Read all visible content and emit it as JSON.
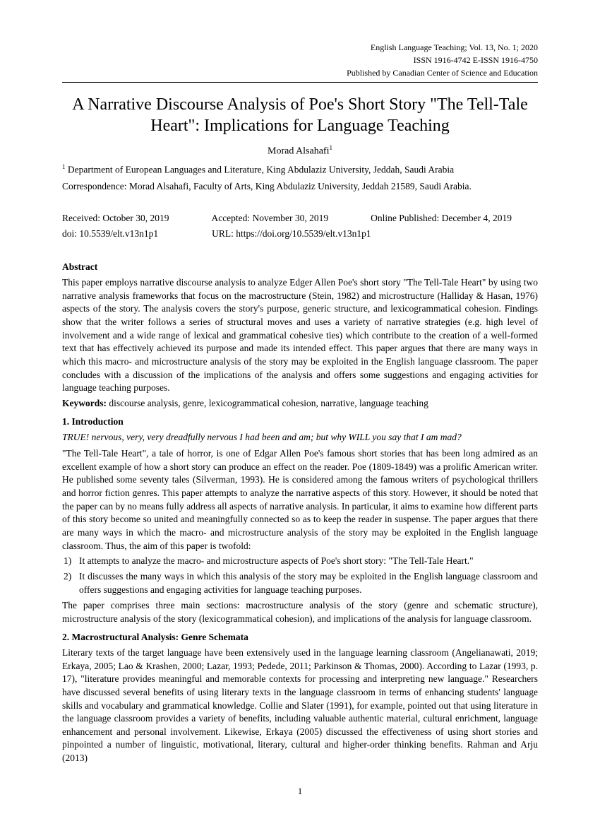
{
  "header": {
    "journal": "English Language Teaching; Vol. 13, No. 1; 2020",
    "issn": "ISSN 1916-4742    E-ISSN 1916-4750",
    "publisher": "Published by Canadian Center of Science and Education"
  },
  "title": "A Narrative Discourse Analysis of Poe's Short Story \"The Tell-Tale Heart\": Implications for Language Teaching",
  "author": "Morad Alsahafi",
  "author_sup": "1",
  "affil_sup": "1",
  "affiliation": " Department of European Languages and Literature, King Abdulaziz University, Jeddah, Saudi Arabia",
  "correspondence": "Correspondence: Morad Alsahafi, Faculty of Arts, King Abdulaziz University, Jeddah 21589, Saudi Arabia.",
  "dates": {
    "received": "Received: October 30, 2019",
    "accepted": "Accepted: November 30, 2019",
    "published": "Online Published: December 4, 2019"
  },
  "ids": {
    "doi": "doi: 10.5539/elt.v13n1p1",
    "url": "URL: https://doi.org/10.5539/elt.v13n1p1"
  },
  "abstract_head": "Abstract",
  "abstract_body": "This paper employs narrative discourse analysis to analyze Edger Allen Poe's short story \"The Tell-Tale Heart\" by using two narrative analysis frameworks that focus on the macrostructure (Stein, 1982) and microstructure (Halliday & Hasan, 1976) aspects of the story. The analysis covers the story's purpose, generic structure, and lexicogrammatical cohesion. Findings show that the writer follows a series of structural moves and uses a variety of narrative strategies (e.g. high level of involvement and a wide range of lexical and grammatical cohesive ties) which contribute to the creation of a well-formed text that has effectively achieved its purpose and made its intended effect. This paper argues that there are many ways in which this macro- and microstructure analysis of the story may be exploited in the English language classroom. The paper concludes with a discussion of the implications of the analysis and offers some suggestions and engaging activities for language teaching purposes.",
  "keywords_label": "Keywords:",
  "keywords_value": " discourse analysis, genre, lexicogrammatical cohesion, narrative, language teaching",
  "intro_head": "1. Introduction",
  "intro_quote": "TRUE! nervous, very, very dreadfully nervous I had been and am; but why WILL you say that I am mad?",
  "intro_body": "\"The Tell-Tale Heart\", a tale of horror, is one of Edgar Allen Poe's famous short stories that has been long admired as an excellent example of how a short story can produce an effect on the reader. Poe (1809-1849) was a prolific American writer. He published some seventy tales (Silverman, 1993). He is considered among the famous writers of psychological thrillers and horror fiction genres. This paper attempts to analyze the narrative aspects of this story. However, it should be noted that the paper can by no means fully address all aspects of narrative analysis. In particular, it aims to examine how different parts of this story become so united and meaningfully connected so as to keep the reader in suspense. The paper argues that there are many ways in which the macro- and microstructure analysis of the story may be exploited in the English language classroom. Thus, the aim of this paper is twofold:",
  "list1_num": "1)",
  "list1_txt": "It attempts to analyze the macro- and microstructure aspects of Poe's short story: \"The Tell-Tale Heart.\"",
  "list2_num": "2)",
  "list2_txt": "It discusses the many ways in which this analysis of the story may be exploited in the English language classroom and offers suggestions and engaging activities for language teaching purposes.",
  "intro_tail": "The paper comprises three main sections: macrostructure analysis of the story (genre and schematic structure), microstructure analysis of the story (lexicogrammatical cohesion), and implications of the analysis for language classroom.",
  "sec2_head": "2. Macrostructural Analysis: Genre Schemata",
  "sec2_body": "Literary texts of the target language have been extensively used in the language learning classroom (Angelianawati, 2019; Erkaya, 2005; Lao & Krashen, 2000; Lazar, 1993; Pedede, 2011; Parkinson & Thomas, 2000). According to Lazar (1993, p. 17), \"literature provides meaningful and memorable contexts for processing and interpreting new language.\" Researchers have discussed several benefits of using literary texts in the language classroom in terms of enhancing students' language skills and vocabulary and grammatical knowledge. Collie and Slater (1991), for example, pointed out that using literature in the language classroom provides a variety of benefits, including valuable authentic material, cultural enrichment, language enhancement and personal involvement. Likewise, Erkaya (2005) discussed the effectiveness of using short stories and pinpointed a number of linguistic, motivational, literary, cultural and higher-order thinking benefits. Rahman and Arju (2013)",
  "page_num": "1"
}
